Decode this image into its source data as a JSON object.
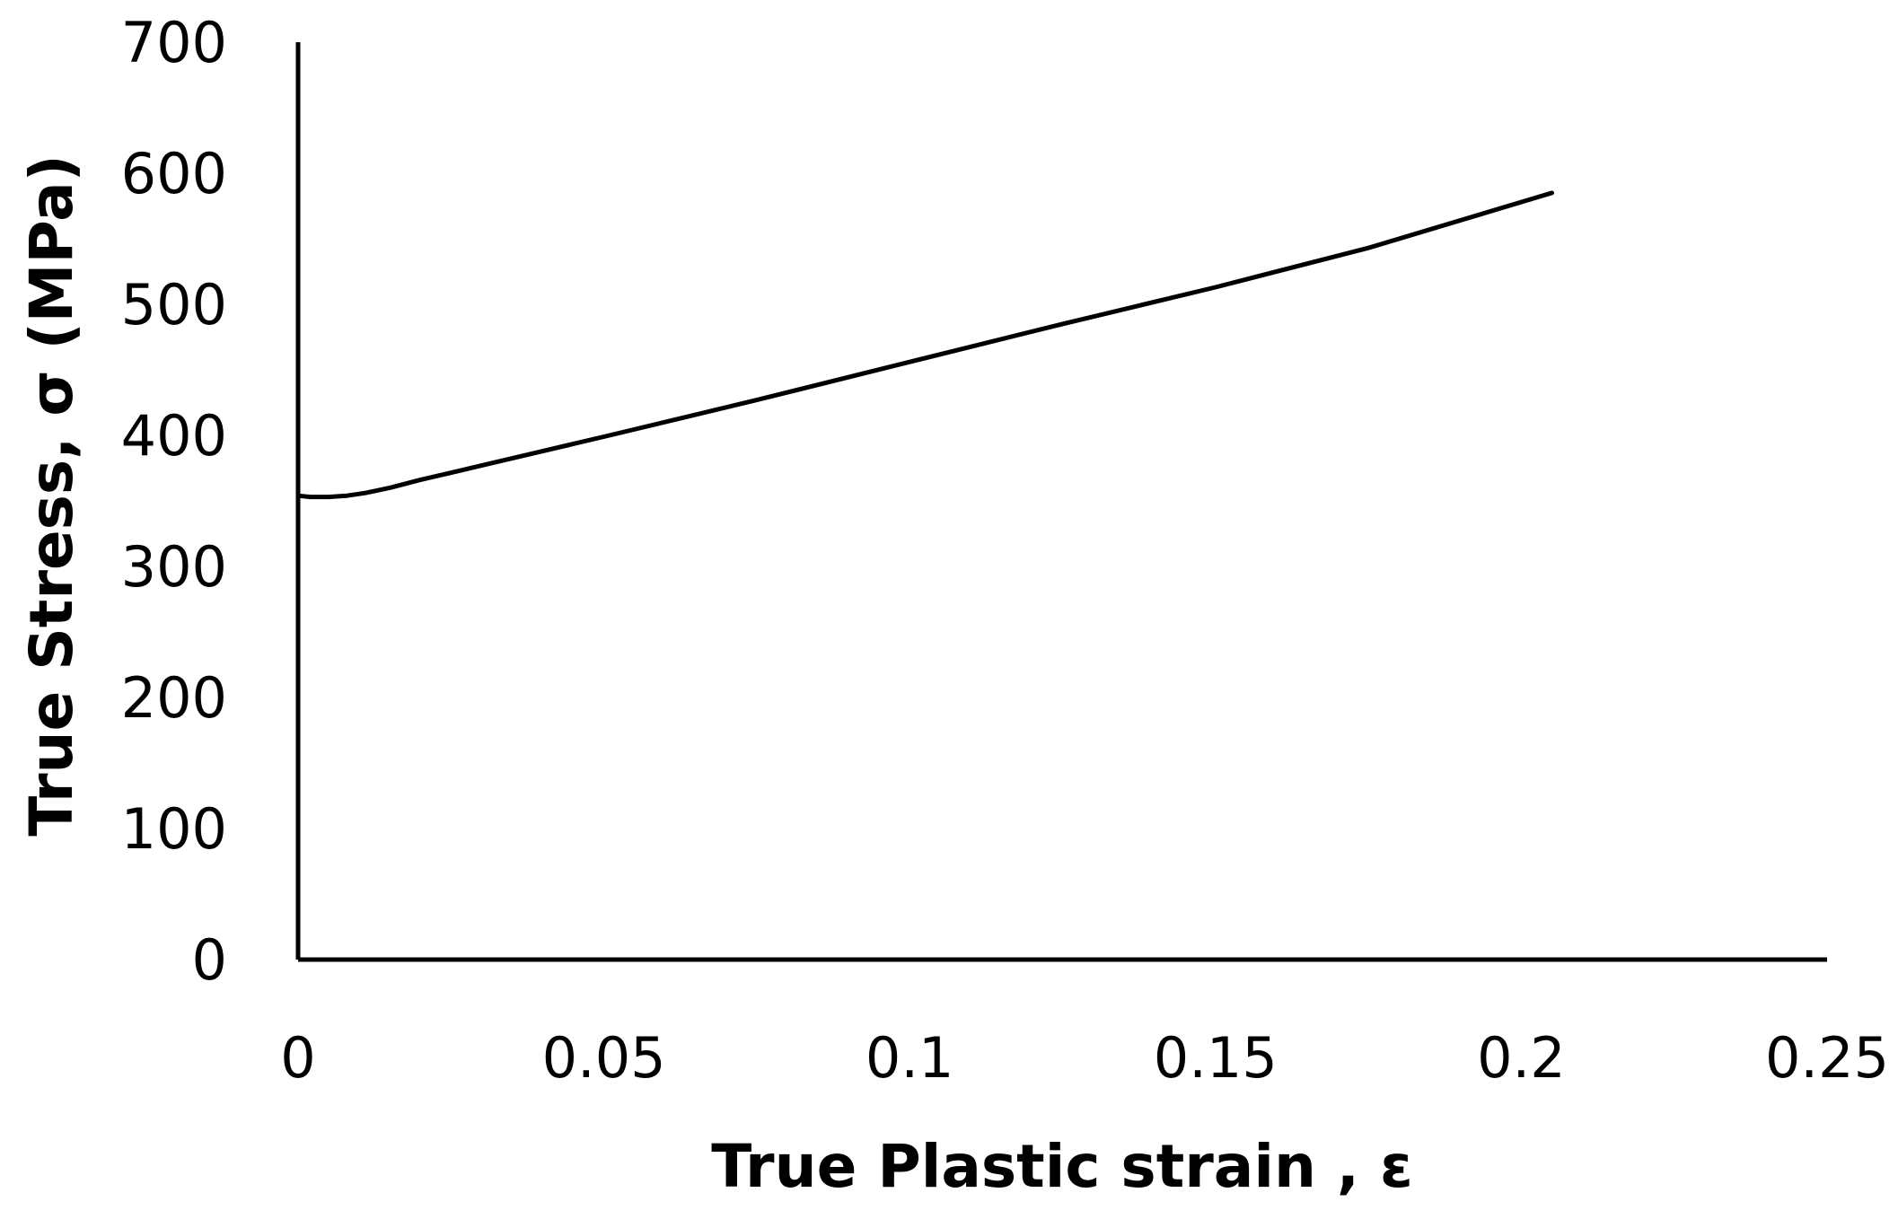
{
  "chart_data": {
    "type": "line",
    "title": "",
    "xlabel": "True Plastic strain , ε",
    "ylabel": "True Stress, σ (MPa)",
    "xlim": [
      0,
      0.25
    ],
    "ylim": [
      0,
      700
    ],
    "x_ticks": [
      "0",
      "0.05",
      "0.1",
      "0.15",
      "0.2",
      "0.25"
    ],
    "y_ticks": [
      "0",
      "100",
      "200",
      "300",
      "400",
      "500",
      "600",
      "700"
    ],
    "grid": false,
    "legend": "none",
    "line_color": "#000000",
    "series": [
      {
        "x": [
          0,
          0.002,
          0.005,
          0.008,
          0.011,
          0.015,
          0.02,
          0.03,
          0.05,
          0.075,
          0.1,
          0.125,
          0.15,
          0.175,
          0.205
        ],
        "y": [
          354,
          353,
          353,
          354,
          356,
          360,
          366,
          377,
          399,
          427,
          456,
          485,
          513,
          543,
          585
        ]
      }
    ]
  }
}
